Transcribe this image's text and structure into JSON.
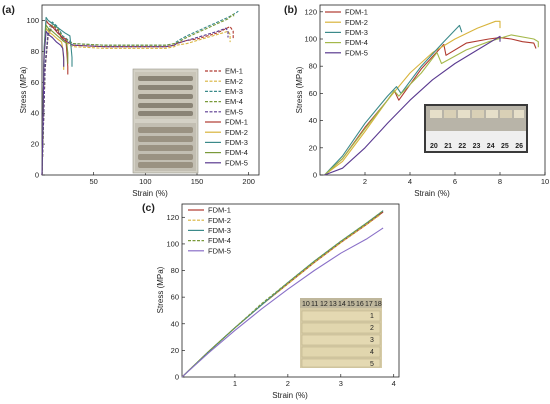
{
  "chart_data": [
    {
      "panel": "(a)",
      "type": "line",
      "xlabel": "Strain (%)",
      "ylabel": "Stress (MPa)",
      "xlim": [
        0,
        210
      ],
      "ylim": [
        0,
        110
      ],
      "xticks": [
        50,
        100,
        150,
        200
      ],
      "yticks": [
        0,
        20,
        40,
        60,
        80,
        100
      ],
      "legend_position": "right-center",
      "series": [
        {
          "name": "EM-1",
          "style": "dashed",
          "color": "#b03a30",
          "x": [
            0,
            3,
            6,
            10,
            15,
            20,
            30,
            60,
            90,
            120,
            128,
            130,
            140,
            150,
            160,
            170,
            182,
            185,
            185
          ],
          "y": [
            0,
            70,
            92,
            97,
            94,
            88,
            84,
            83,
            83,
            83,
            84,
            85,
            87,
            88,
            90,
            92,
            96,
            93,
            88
          ]
        },
        {
          "name": "EM-2",
          "style": "dashed",
          "color": "#d8b43c",
          "x": [
            0,
            3,
            6,
            10,
            15,
            20,
            30,
            60,
            90,
            120,
            128,
            130,
            140,
            150,
            160,
            170,
            180,
            182,
            182
          ],
          "y": [
            0,
            68,
            90,
            96,
            93,
            87,
            83,
            82,
            82,
            82,
            83,
            84,
            85,
            87,
            89,
            91,
            93,
            91,
            86
          ]
        },
        {
          "name": "EM-3",
          "style": "dashed",
          "color": "#3b8a8a",
          "x": [
            0,
            3,
            6,
            10,
            15,
            20,
            30,
            60,
            90,
            120,
            128,
            132,
            140,
            150,
            160,
            170,
            180,
            188,
            190
          ],
          "y": [
            0,
            72,
            94,
            99,
            96,
            90,
            85,
            84,
            84,
            84,
            85,
            87,
            90,
            93,
            96,
            99,
            102,
            105,
            106
          ]
        },
        {
          "name": "EM-4",
          "style": "dashed",
          "color": "#7a9a3a",
          "x": [
            0,
            3,
            6,
            10,
            15,
            20,
            30,
            60,
            90,
            120,
            128,
            132,
            140,
            150,
            160,
            170,
            180,
            185,
            186
          ],
          "y": [
            0,
            70,
            92,
            97,
            95,
            89,
            85,
            84,
            84,
            84,
            85,
            86,
            89,
            92,
            95,
            98,
            101,
            104,
            102
          ]
        },
        {
          "name": "EM-5",
          "style": "dashed",
          "color": "#5a3a90",
          "x": [
            0,
            3,
            6,
            10,
            15,
            20,
            30,
            60,
            90,
            120,
            128,
            130,
            140,
            150,
            160,
            170,
            178,
            180,
            180
          ],
          "y": [
            0,
            69,
            91,
            96,
            93,
            88,
            84,
            83,
            83,
            83,
            84,
            85,
            87,
            89,
            91,
            93,
            95,
            93,
            89
          ]
        },
        {
          "name": "FDM-1",
          "style": "solid",
          "color": "#b03a30",
          "x": [
            0,
            2,
            4,
            6,
            10,
            15,
            20,
            23,
            24,
            25,
            25
          ],
          "y": [
            0,
            80,
            100,
            98,
            96,
            92,
            89,
            88,
            80,
            70,
            65
          ]
        },
        {
          "name": "FDM-2",
          "style": "solid",
          "color": "#d8b43c",
          "x": [
            0,
            2,
            4,
            6,
            10,
            15,
            19,
            20,
            21,
            21
          ],
          "y": [
            0,
            78,
            95,
            93,
            91,
            88,
            86,
            82,
            74,
            68
          ]
        },
        {
          "name": "FDM-3",
          "style": "solid",
          "color": "#3b8a8a",
          "x": [
            0,
            2,
            4,
            6,
            10,
            16,
            22,
            27,
            28,
            29,
            29
          ],
          "y": [
            0,
            82,
            102,
            100,
            98,
            95,
            92,
            90,
            84,
            76,
            70
          ]
        },
        {
          "name": "FDM-4",
          "style": "solid",
          "color": "#7a9a3a",
          "x": [
            0,
            2,
            4,
            6,
            10,
            15,
            20,
            24,
            25,
            25
          ],
          "y": [
            0,
            79,
            97,
            95,
            93,
            90,
            87,
            85,
            79,
            72
          ]
        },
        {
          "name": "FDM-5",
          "style": "solid",
          "color": "#5a3a90",
          "x": [
            0,
            2,
            4,
            6,
            10,
            14,
            18,
            20,
            21,
            21
          ],
          "y": [
            0,
            77,
            93,
            91,
            89,
            86,
            84,
            82,
            76,
            70
          ]
        }
      ],
      "inset_photo": true
    },
    {
      "panel": "(b)",
      "type": "line",
      "xlabel": "Strain (%)",
      "ylabel": "Stress (MPa)",
      "xlim": [
        0,
        10
      ],
      "ylim": [
        0,
        125
      ],
      "xticks": [
        2,
        4,
        6,
        8,
        10
      ],
      "yticks": [
        0,
        20,
        40,
        60,
        80,
        100,
        120
      ],
      "legend_position": "top-left",
      "series": [
        {
          "name": "FDM-1",
          "color": "#b03a30",
          "x": [
            0.2,
            1.0,
            2.0,
            3.0,
            3.3,
            3.5,
            4.5,
            5.5,
            5.6,
            6.5,
            7.5,
            8.0,
            8.5,
            9.0,
            9.5,
            9.6
          ],
          "y": [
            0,
            12,
            35,
            55,
            62,
            55,
            78,
            96,
            88,
            97,
            100,
            101,
            100,
            98,
            97,
            93
          ]
        },
        {
          "name": "FDM-2",
          "color": "#d8b43c",
          "x": [
            0.2,
            1.0,
            2.0,
            3.0,
            4.0,
            5.0,
            6.0,
            7.0,
            7.8,
            8.0,
            8.0
          ],
          "y": [
            0,
            10,
            32,
            55,
            75,
            90,
            100,
            108,
            113,
            113,
            108
          ]
        },
        {
          "name": "FDM-3",
          "color": "#3b8a8a",
          "x": [
            0.2,
            1.0,
            2.0,
            3.0,
            3.4,
            3.6,
            4.5,
            5.5,
            6.2,
            6.3
          ],
          "y": [
            0,
            14,
            38,
            58,
            65,
            60,
            80,
            98,
            110,
            105
          ]
        },
        {
          "name": "FDM-4",
          "color": "#a4b84a",
          "x": [
            0.2,
            1.0,
            2.0,
            3.0,
            3.3,
            3.5,
            4.5,
            5.2,
            5.4,
            6.5,
            7.5,
            8.5,
            9.5,
            9.7,
            9.7
          ],
          "y": [
            0,
            12,
            34,
            55,
            62,
            58,
            75,
            90,
            82,
            92,
            98,
            103,
            100,
            98,
            94
          ]
        },
        {
          "name": "FDM-5",
          "color": "#5a3a90",
          "x": [
            0.2,
            1.0,
            2.0,
            3.0,
            4.0,
            5.0,
            6.0,
            7.0,
            8.0,
            8.0
          ],
          "y": [
            0,
            5,
            20,
            38,
            55,
            70,
            82,
            92,
            102,
            98
          ]
        }
      ],
      "inset_photo_numbers": [
        "20",
        "21",
        "22",
        "23",
        "24",
        "25",
        "26"
      ]
    },
    {
      "panel": "(c)",
      "type": "line",
      "xlabel": "Strain (%)",
      "ylabel": "Stress (MPa)",
      "xlim": [
        0,
        4.1
      ],
      "ylim": [
        0,
        130
      ],
      "xticks": [
        1,
        2,
        3,
        4
      ],
      "yticks": [
        0,
        20,
        40,
        60,
        80,
        100,
        120
      ],
      "legend_position": "top-left",
      "series": [
        {
          "name": "FDM-1",
          "color": "#b03a30",
          "style": "solid",
          "x": [
            0,
            0.5,
            1.0,
            1.5,
            2.0,
            2.5,
            3.0,
            3.5,
            3.8
          ],
          "y": [
            0,
            19,
            37,
            54,
            70,
            86,
            101,
            115,
            124
          ]
        },
        {
          "name": "FDM-2",
          "color": "#d8b43c",
          "style": "dashed",
          "x": [
            0,
            0.5,
            1.0,
            1.5,
            2.0,
            2.5,
            3.0,
            3.5,
            3.75
          ],
          "y": [
            0,
            19,
            37,
            54,
            70,
            86,
            101,
            115,
            122
          ]
        },
        {
          "name": "FDM-3",
          "color": "#3b8a8a",
          "style": "solid",
          "x": [
            0,
            0.5,
            1.0,
            1.5,
            2.0,
            2.5,
            3.0,
            3.5,
            3.8
          ],
          "y": [
            0,
            19,
            37,
            54,
            71,
            87,
            102,
            116,
            125
          ]
        },
        {
          "name": "FDM-4",
          "color": "#7a9a3a",
          "style": "dashed",
          "x": [
            0,
            0.5,
            1.0,
            1.5,
            2.0,
            2.5,
            3.0,
            3.5,
            3.8
          ],
          "y": [
            0,
            19,
            37,
            55,
            71,
            87,
            102,
            116,
            125
          ]
        },
        {
          "name": "FDM-5",
          "color": "#8a70c8",
          "style": "solid",
          "x": [
            0,
            0.5,
            1.0,
            1.5,
            2.0,
            2.5,
            3.0,
            3.5,
            3.8
          ],
          "y": [
            0,
            18,
            35,
            51,
            66,
            80,
            93,
            104,
            112
          ]
        }
      ],
      "inset_ruler_numbers": [
        "10",
        "11",
        "12",
        "13",
        "14",
        "15",
        "16",
        "17",
        "18"
      ],
      "inset_sample_numbers": [
        "1",
        "2",
        "3",
        "4",
        "5"
      ]
    }
  ]
}
